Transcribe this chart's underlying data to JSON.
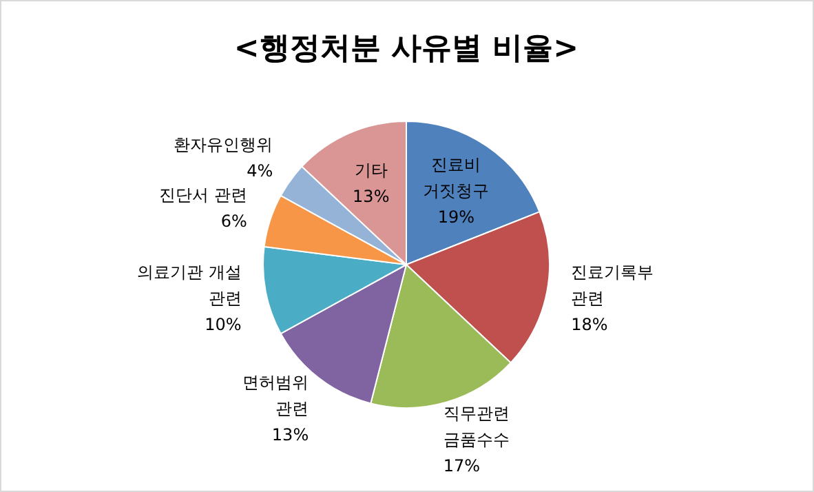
{
  "chart_data": {
    "type": "pie",
    "title": "<행정처분 사유별 비율>",
    "categories": [
      "진료비 거짓청구",
      "진료기록부 관련",
      "직무관련 금품수수",
      "면허범위 관련",
      "의료기관 개설 관련",
      "진단서 관련",
      "환자유인행위",
      "기타"
    ],
    "values": [
      19,
      18,
      17,
      13,
      10,
      6,
      4,
      13
    ],
    "colors": [
      "#4f81bd",
      "#c0504d",
      "#9bbb59",
      "#8064a2",
      "#4bacc6",
      "#f79646",
      "#95b3d7",
      "#d99694"
    ],
    "value_labels": [
      "19%",
      "18%",
      "17%",
      "13%",
      "10%",
      "6%",
      "4%",
      "13%"
    ]
  }
}
